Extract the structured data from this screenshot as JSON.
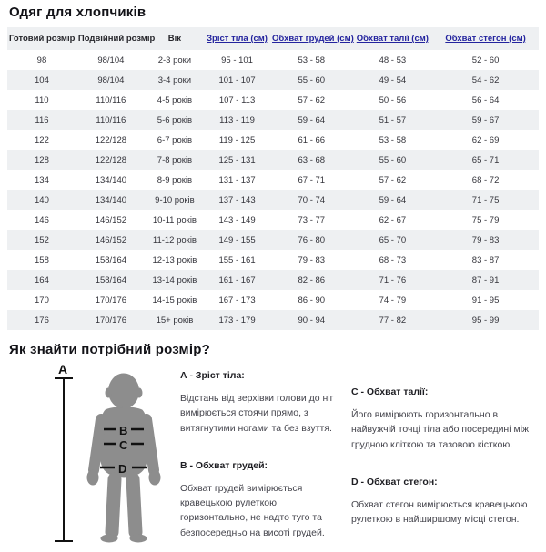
{
  "page": {
    "title": "Одяг для хлопчиків",
    "section_title": "Як знайти потрібний розмір?"
  },
  "colors": {
    "link_header": "#23239e",
    "row_alt_background": "#eef0f2",
    "silhouette_gray": "#8d8d8d",
    "text_dark": "#26262b"
  },
  "table": {
    "columns": [
      {
        "key": "ready-size",
        "label": "Готовий розмір",
        "link": false
      },
      {
        "key": "double-size",
        "label": "Подвійний розмір",
        "link": false
      },
      {
        "key": "age",
        "label": "Вік",
        "link": false
      },
      {
        "key": "height",
        "label": "Зріст тіла (см)",
        "link": true
      },
      {
        "key": "chest",
        "label": "Обхват грудей (см)",
        "link": true
      },
      {
        "key": "waist",
        "label": "Обхват талії (см)",
        "link": true
      },
      {
        "key": "hips",
        "label": "Обхват стегон (см)",
        "link": true
      }
    ],
    "rows": [
      [
        "98",
        "98/104",
        "2-3 роки",
        "95 - 101",
        "53 - 58",
        "48 - 53",
        "52 - 60"
      ],
      [
        "104",
        "98/104",
        "3-4 роки",
        "101 - 107",
        "55 - 60",
        "49 - 54",
        "54 - 62"
      ],
      [
        "110",
        "110/116",
        "4-5 років",
        "107 - 113",
        "57 - 62",
        "50 - 56",
        "56 - 64"
      ],
      [
        "116",
        "110/116",
        "5-6 років",
        "113 - 119",
        "59 - 64",
        "51 - 57",
        "59 - 67"
      ],
      [
        "122",
        "122/128",
        "6-7 років",
        "119 - 125",
        "61 - 66",
        "53 - 58",
        "62 - 69"
      ],
      [
        "128",
        "122/128",
        "7-8 років",
        "125 - 131",
        "63 - 68",
        "55 - 60",
        "65 - 71"
      ],
      [
        "134",
        "134/140",
        "8-9 років",
        "131 - 137",
        "67 - 71",
        "57 - 62",
        "68 - 72"
      ],
      [
        "140",
        "134/140",
        "9-10 років",
        "137 - 143",
        "70 - 74",
        "59 - 64",
        "71 - 75"
      ],
      [
        "146",
        "146/152",
        "10-11 років",
        "143 - 149",
        "73 - 77",
        "62 - 67",
        "75 - 79"
      ],
      [
        "152",
        "146/152",
        "11-12 років",
        "149 - 155",
        "76 - 80",
        "65 - 70",
        "79 - 83"
      ],
      [
        "158",
        "158/164",
        "12-13 років",
        "155 - 161",
        "79 - 83",
        "68 - 73",
        "83 - 87"
      ],
      [
        "164",
        "158/164",
        "13-14 років",
        "161 - 167",
        "82 - 86",
        "71 - 76",
        "87 - 91"
      ],
      [
        "170",
        "170/176",
        "14-15 років",
        "167 - 173",
        "86 - 90",
        "74 - 79",
        "91 - 95"
      ],
      [
        "176",
        "170/176",
        "15+ років",
        "173 - 179",
        "90 - 94",
        "77 - 82",
        "95 - 99"
      ]
    ]
  },
  "guide": {
    "figure_labels": {
      "a": "A",
      "b": "B",
      "c": "C",
      "d": "D"
    },
    "items": [
      {
        "heading": "А - Зріст тіла:",
        "text": "Відстань від верхівки голови до ніг вимірюється стоячи прямо, з витягнутими ногами та без взуття."
      },
      {
        "heading": "В - Обхват грудей:",
        "text": "Обхват грудей вимірюється кравецькою рулеткою горизонтально, не надто туго та безпосередньо на висоті грудей."
      },
      {
        "heading": "С - Обхват талії:",
        "text": "Його вимірюють горизонтально в найвужчій точці тіла або посередині між грудною кліткою та тазовою кісткою."
      },
      {
        "heading": "D - Обхват стегон:",
        "text": "Обхват стегон вимірюється кравецькою рулеткою в найширшому місці стегон."
      }
    ]
  }
}
